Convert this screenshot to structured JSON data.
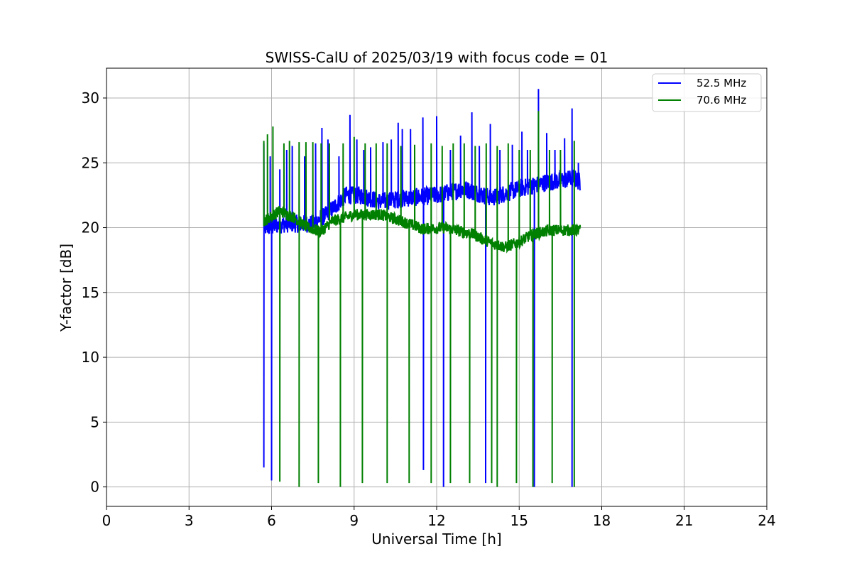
{
  "chart_data": {
    "type": "line",
    "title": "SWISS-CalU of 2025/03/19 with focus code = 01",
    "xlabel": "Universal Time [h]",
    "ylabel": "Y-factor [dB]",
    "xlim": [
      0,
      24
    ],
    "ylim": [
      -1.5,
      32.3
    ],
    "xticks": [
      0,
      3,
      6,
      9,
      12,
      15,
      18,
      21,
      24
    ],
    "yticks": [
      0,
      5,
      10,
      15,
      20,
      25,
      30
    ],
    "grid": true,
    "legend_position": "top-right",
    "series": [
      {
        "name": "52.5 MHz",
        "color": "#0000ff",
        "baseline": [
          [
            5.72,
            20.0
          ],
          [
            6.5,
            20.3
          ],
          [
            7.5,
            20.3
          ],
          [
            8.0,
            21.0
          ],
          [
            8.7,
            22.5
          ],
          [
            9.2,
            22.5
          ],
          [
            10.0,
            22.0
          ],
          [
            11.0,
            22.3
          ],
          [
            12.0,
            22.5
          ],
          [
            13.0,
            23.0
          ],
          [
            14.0,
            22.3
          ],
          [
            15.0,
            23.0
          ],
          [
            16.0,
            23.5
          ],
          [
            17.0,
            23.8
          ],
          [
            17.22,
            23.5
          ]
        ],
        "high_spikes": [
          [
            5.72,
            26.5
          ],
          [
            5.95,
            25.5
          ],
          [
            6.3,
            24.5
          ],
          [
            6.55,
            26.0
          ],
          [
            6.75,
            26.3
          ],
          [
            7.2,
            25.5
          ],
          [
            7.6,
            26.5
          ],
          [
            7.83,
            27.7
          ],
          [
            8.05,
            26.8
          ],
          [
            8.45,
            25.5
          ],
          [
            8.85,
            28.7
          ],
          [
            9.1,
            26.8
          ],
          [
            9.35,
            26.0
          ],
          [
            9.6,
            26.2
          ],
          [
            10.05,
            26.6
          ],
          [
            10.35,
            26.8
          ],
          [
            10.6,
            28.1
          ],
          [
            10.75,
            27.6
          ],
          [
            11.05,
            27.6
          ],
          [
            11.5,
            28.5
          ],
          [
            12.0,
            28.6
          ],
          [
            12.5,
            26.0
          ],
          [
            12.87,
            27.1
          ],
          [
            13.28,
            28.9
          ],
          [
            13.55,
            26.3
          ],
          [
            13.95,
            28.0
          ],
          [
            14.3,
            26.0
          ],
          [
            14.75,
            26.4
          ],
          [
            15.1,
            27.4
          ],
          [
            15.3,
            26.0
          ],
          [
            15.7,
            30.7
          ],
          [
            16.0,
            27.3
          ],
          [
            16.3,
            26.0
          ],
          [
            16.65,
            26.9
          ],
          [
            16.92,
            29.2
          ],
          [
            17.15,
            25.0
          ]
        ],
        "low_dips": [
          [
            5.72,
            1.5
          ],
          [
            6.0,
            0.5
          ],
          [
            11.52,
            1.3
          ],
          [
            12.25,
            0.0
          ],
          [
            13.78,
            0.3
          ],
          [
            15.55,
            0.0
          ],
          [
            16.92,
            0.0
          ]
        ]
      },
      {
        "name": "70.6 MHz",
        "color": "#008000",
        "baseline": [
          [
            5.72,
            20.5
          ],
          [
            6.3,
            21.3
          ],
          [
            6.8,
            20.8
          ],
          [
            7.3,
            20.0
          ],
          [
            7.8,
            19.7
          ],
          [
            8.2,
            20.5
          ],
          [
            9.0,
            21.0
          ],
          [
            10.0,
            21.0
          ],
          [
            11.0,
            20.3
          ],
          [
            11.5,
            19.9
          ],
          [
            12.3,
            20.0
          ],
          [
            13.3,
            19.5
          ],
          [
            14.0,
            18.8
          ],
          [
            14.5,
            18.5
          ],
          [
            15.0,
            18.9
          ],
          [
            15.5,
            19.5
          ],
          [
            16.2,
            19.8
          ],
          [
            16.8,
            19.8
          ],
          [
            17.22,
            19.8
          ]
        ],
        "high_spikes": [
          [
            5.72,
            26.7
          ],
          [
            5.85,
            27.2
          ],
          [
            6.05,
            27.8
          ],
          [
            6.45,
            26.5
          ],
          [
            6.65,
            26.7
          ],
          [
            7.0,
            26.6
          ],
          [
            7.25,
            26.6
          ],
          [
            7.5,
            26.6
          ],
          [
            7.8,
            26.5
          ],
          [
            8.1,
            26.5
          ],
          [
            8.6,
            26.5
          ],
          [
            9.0,
            27.0
          ],
          [
            9.4,
            26.5
          ],
          [
            9.8,
            26.5
          ],
          [
            10.2,
            26.5
          ],
          [
            10.7,
            26.3
          ],
          [
            11.2,
            26.4
          ],
          [
            11.8,
            26.5
          ],
          [
            12.2,
            26.3
          ],
          [
            12.6,
            26.5
          ],
          [
            13.0,
            26.5
          ],
          [
            13.4,
            26.3
          ],
          [
            13.8,
            26.5
          ],
          [
            14.2,
            26.3
          ],
          [
            14.6,
            26.5
          ],
          [
            15.0,
            26.0
          ],
          [
            15.4,
            26.0
          ],
          [
            15.7,
            29.0
          ],
          [
            16.1,
            26.0
          ],
          [
            16.5,
            26.0
          ],
          [
            17.0,
            26.7
          ]
        ],
        "low_dips": [
          [
            6.3,
            0.4
          ],
          [
            7.0,
            0.0
          ],
          [
            7.7,
            0.3
          ],
          [
            8.5,
            0.0
          ],
          [
            9.3,
            0.3
          ],
          [
            10.2,
            0.3
          ],
          [
            11.0,
            0.3
          ],
          [
            11.8,
            0.3
          ],
          [
            12.5,
            0.3
          ],
          [
            13.2,
            0.3
          ],
          [
            14.0,
            0.3
          ],
          [
            14.2,
            0.0
          ],
          [
            14.9,
            0.3
          ],
          [
            15.5,
            0.0
          ],
          [
            16.2,
            0.3
          ],
          [
            17.0,
            0.0
          ]
        ]
      }
    ]
  }
}
